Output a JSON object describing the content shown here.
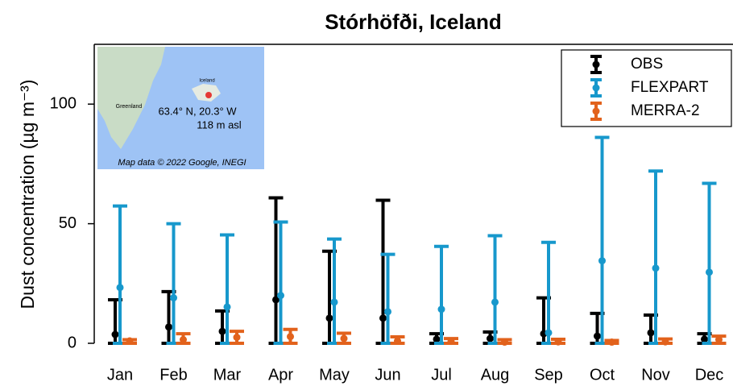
{
  "chart_data": {
    "type": "errorbar",
    "title": "Stórhöfði, Iceland",
    "ylabel": "Dust concentration (µg m⁻³)",
    "categories": [
      "Jan",
      "Feb",
      "Mar",
      "Apr",
      "May",
      "Jun",
      "Jul",
      "Aug",
      "Sep",
      "Oct",
      "Nov",
      "Dec"
    ],
    "ylim": [
      0,
      125
    ],
    "yticks": [
      0,
      50,
      100
    ],
    "legend": "upper right",
    "series": [
      {
        "name": "OBS",
        "color": "#000000",
        "values": [
          3.7,
          6.8,
          5,
          18.2,
          10.5,
          10.5,
          1.7,
          2,
          4,
          3,
          4.4,
          1.7
        ],
        "upper": [
          18.2,
          21.6,
          13.5,
          60.8,
          38.5,
          59.8,
          4,
          4.7,
          19,
          12.5,
          11.8,
          4
        ],
        "lower": [
          0,
          0,
          0,
          0,
          0,
          0,
          0,
          0,
          0,
          0,
          0,
          0
        ]
      },
      {
        "name": "FLEXPART",
        "color": "#1798cc",
        "values": [
          23.3,
          19,
          15.2,
          20,
          17.2,
          13.2,
          14.2,
          17.2,
          4.4,
          34.5,
          31.4,
          29.7
        ],
        "upper": [
          57.4,
          50,
          45.3,
          50.7,
          43.6,
          37.2,
          40.5,
          45,
          42.2,
          86.1,
          72,
          66.9
        ],
        "lower": [
          0,
          0,
          0,
          0,
          0,
          0,
          0,
          0,
          0,
          0,
          0,
          0
        ]
      },
      {
        "name": "MERRA-2",
        "color": "#e2621c",
        "values": [
          1,
          1.5,
          2.5,
          2.8,
          2,
          1,
          0.8,
          0.5,
          0.6,
          0.5,
          0.6,
          1.5
        ],
        "upper": [
          1.5,
          4,
          5,
          5.8,
          4.2,
          2.7,
          2,
          1.5,
          1.7,
          1.2,
          1.8,
          3
        ],
        "lower": [
          0,
          0,
          0,
          0,
          0,
          0,
          0,
          0,
          0,
          0,
          0,
          0
        ]
      }
    ],
    "inset": {
      "coords": "63.4° N, 20.3° W",
      "altitude": "118 m asl",
      "credit": "Map data © 2022 Google, INEGI",
      "greenland": "Greenland",
      "iceland": "Iceland"
    }
  }
}
